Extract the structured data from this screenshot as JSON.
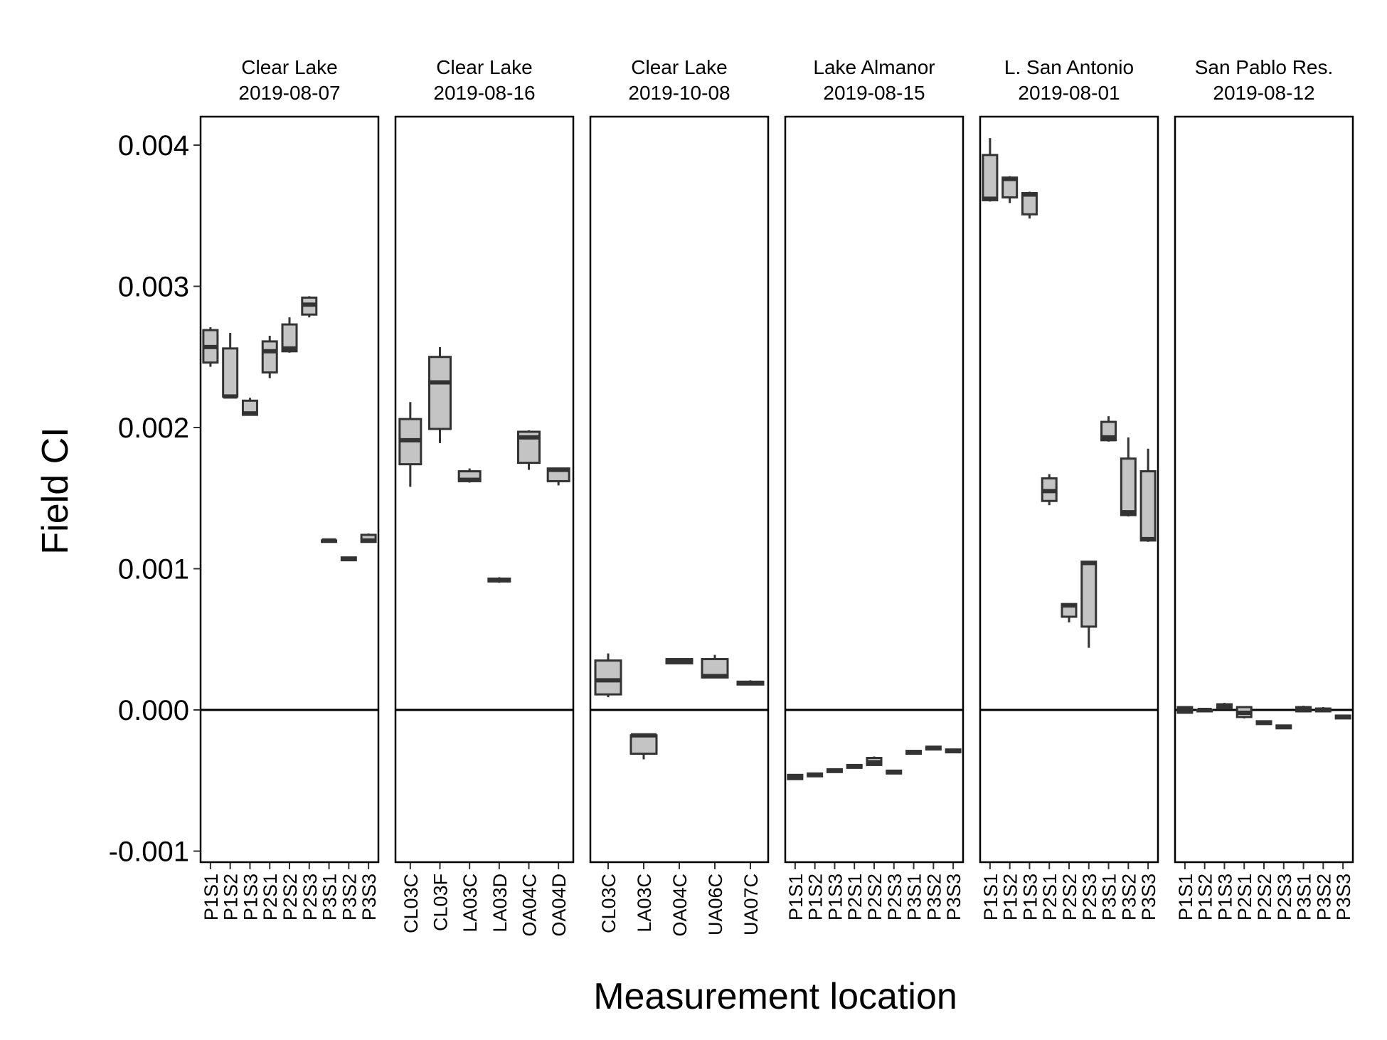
{
  "chart_data": {
    "type": "boxplot",
    "title": "",
    "xlabel": "Measurement location",
    "ylabel": "Field CI",
    "ylim": [
      -0.0011,
      0.0042
    ],
    "yticks": [
      -0.001,
      0.0,
      0.001,
      0.002,
      0.003,
      0.004
    ],
    "ytick_labels": [
      "-0.001",
      "0.000",
      "0.001",
      "0.002",
      "0.003",
      "0.004"
    ],
    "reference_line": 0,
    "grid": false,
    "box_color": "#c4c4c4",
    "line_color": "#333333",
    "panels": [
      {
        "title_line1": "Clear Lake",
        "title_line2": "2019-08-07",
        "boxes": [
          {
            "label": "P1S1",
            "min": 0.00243,
            "q1": 0.00246,
            "median": 0.00257,
            "q3": 0.00269,
            "max": 0.00271
          },
          {
            "label": "P1S2",
            "min": 0.00221,
            "q1": 0.00222,
            "median": 0.00222,
            "q3": 0.00256,
            "max": 0.00267
          },
          {
            "label": "P1S3",
            "min": 0.00209,
            "q1": 0.00209,
            "median": 0.0021,
            "q3": 0.00219,
            "max": 0.00221
          },
          {
            "label": "P2S1",
            "min": 0.00235,
            "q1": 0.00239,
            "median": 0.00254,
            "q3": 0.00261,
            "max": 0.00265
          },
          {
            "label": "P2S2",
            "min": 0.00253,
            "q1": 0.00254,
            "median": 0.00256,
            "q3": 0.00273,
            "max": 0.00278
          },
          {
            "label": "P2S3",
            "min": 0.00278,
            "q1": 0.0028,
            "median": 0.00287,
            "q3": 0.00292,
            "max": 0.00293
          },
          {
            "label": "P3S1",
            "min": 0.00119,
            "q1": 0.00119,
            "median": 0.0012,
            "q3": 0.0012,
            "max": 0.00121
          },
          {
            "label": "P3S2",
            "min": 0.00106,
            "q1": 0.00106,
            "median": 0.00107,
            "q3": 0.00108,
            "max": 0.00108
          },
          {
            "label": "P3S3",
            "min": 0.00119,
            "q1": 0.00119,
            "median": 0.0012,
            "q3": 0.00124,
            "max": 0.00125
          }
        ]
      },
      {
        "title_line1": "Clear Lake",
        "title_line2": "2019-08-16",
        "boxes": [
          {
            "label": "CL03C",
            "min": 0.00158,
            "q1": 0.00174,
            "median": 0.00191,
            "q3": 0.00206,
            "max": 0.00218
          },
          {
            "label": "CL03F",
            "min": 0.00189,
            "q1": 0.00199,
            "median": 0.00232,
            "q3": 0.0025,
            "max": 0.00257
          },
          {
            "label": "LA03C",
            "min": 0.00161,
            "q1": 0.00162,
            "median": 0.00163,
            "q3": 0.00169,
            "max": 0.00171
          },
          {
            "label": "LA03D",
            "min": 0.0009,
            "q1": 0.00091,
            "median": 0.00092,
            "q3": 0.00093,
            "max": 0.00094
          },
          {
            "label": "OA04C",
            "min": 0.0017,
            "q1": 0.00175,
            "median": 0.00193,
            "q3": 0.00197,
            "max": 0.00198
          },
          {
            "label": "OA04D",
            "min": 0.00159,
            "q1": 0.00162,
            "median": 0.0017,
            "q3": 0.00171,
            "max": 0.00171
          }
        ]
      },
      {
        "title_line1": "Clear Lake",
        "title_line2": "2019-10-08",
        "boxes": [
          {
            "label": "CL03C",
            "min": 9e-05,
            "q1": 0.00011,
            "median": 0.00021,
            "q3": 0.00035,
            "max": 0.0004
          },
          {
            "label": "LA03C",
            "min": -0.00035,
            "q1": -0.00031,
            "median": -0.00018,
            "q3": -0.00018,
            "max": -0.00018
          },
          {
            "label": "OA04C",
            "min": 0.00033,
            "q1": 0.00033,
            "median": 0.00035,
            "q3": 0.00036,
            "max": 0.00036
          },
          {
            "label": "UA06C",
            "min": 0.00023,
            "q1": 0.00023,
            "median": 0.00024,
            "q3": 0.00036,
            "max": 0.00039
          },
          {
            "label": "UA07C",
            "min": 0.00018,
            "q1": 0.00018,
            "median": 0.00019,
            "q3": 0.0002,
            "max": 0.00021
          }
        ]
      },
      {
        "title_line1": "Lake Almanor",
        "title_line2": "2019-08-15",
        "boxes": [
          {
            "label": "P1S1",
            "min": -0.00049,
            "q1": -0.00049,
            "median": -0.00048,
            "q3": -0.00046,
            "max": -0.00046
          },
          {
            "label": "P1S2",
            "min": -0.00047,
            "q1": -0.00047,
            "median": -0.00046,
            "q3": -0.00045,
            "max": -0.00045
          },
          {
            "label": "P1S3",
            "min": -0.00044,
            "q1": -0.00044,
            "median": -0.00043,
            "q3": -0.00042,
            "max": -0.00042
          },
          {
            "label": "P2S1",
            "min": -0.00041,
            "q1": -0.00041,
            "median": -0.0004,
            "q3": -0.00039,
            "max": -0.00039
          },
          {
            "label": "P2S2",
            "min": -0.00039,
            "q1": -0.00039,
            "median": -0.00037,
            "q3": -0.00034,
            "max": -0.00033
          },
          {
            "label": "P2S3",
            "min": -0.00045,
            "q1": -0.00045,
            "median": -0.00044,
            "q3": -0.00043,
            "max": -0.00043
          },
          {
            "label": "P3S1",
            "min": -0.00031,
            "q1": -0.00031,
            "median": -0.0003,
            "q3": -0.00029,
            "max": -0.00029
          },
          {
            "label": "P3S2",
            "min": -0.00028,
            "q1": -0.00028,
            "median": -0.00027,
            "q3": -0.00026,
            "max": -0.00026
          },
          {
            "label": "P3S3",
            "min": -0.0003,
            "q1": -0.0003,
            "median": -0.00029,
            "q3": -0.00028,
            "max": -0.00028
          }
        ]
      },
      {
        "title_line1": "L. San Antonio",
        "title_line2": "2019-08-01",
        "boxes": [
          {
            "label": "P1S1",
            "min": 0.0036,
            "q1": 0.00361,
            "median": 0.00362,
            "q3": 0.00393,
            "max": 0.00405
          },
          {
            "label": "P1S2",
            "min": 0.00359,
            "q1": 0.00363,
            "median": 0.00376,
            "q3": 0.00377,
            "max": 0.00378
          },
          {
            "label": "P1S3",
            "min": 0.00348,
            "q1": 0.00351,
            "median": 0.00365,
            "q3": 0.00366,
            "max": 0.00367
          },
          {
            "label": "P2S1",
            "min": 0.00145,
            "q1": 0.00148,
            "median": 0.00155,
            "q3": 0.00164,
            "max": 0.00167
          },
          {
            "label": "P2S2",
            "min": 0.00062,
            "q1": 0.00066,
            "median": 0.00074,
            "q3": 0.00075,
            "max": 0.00075
          },
          {
            "label": "P2S3",
            "min": 0.00044,
            "q1": 0.00059,
            "median": 0.00104,
            "q3": 0.00105,
            "max": 0.00105
          },
          {
            "label": "P3S1",
            "min": 0.0019,
            "q1": 0.00191,
            "median": 0.00193,
            "q3": 0.00204,
            "max": 0.00208
          },
          {
            "label": "P3S2",
            "min": 0.00137,
            "q1": 0.00138,
            "median": 0.0014,
            "q3": 0.00178,
            "max": 0.00193
          },
          {
            "label": "P3S3",
            "min": 0.00119,
            "q1": 0.0012,
            "median": 0.00121,
            "q3": 0.00169,
            "max": 0.00185
          }
        ]
      },
      {
        "title_line1": "San Pablo Res.",
        "title_line2": "2019-08-12",
        "boxes": [
          {
            "label": "P1S1",
            "min": -2e-05,
            "q1": -2e-05,
            "median": 0.0,
            "q3": 2e-05,
            "max": 2e-05
          },
          {
            "label": "P1S2",
            "min": -1e-05,
            "q1": -1e-05,
            "median": 0.0,
            "q3": 0.0,
            "max": 0.0
          },
          {
            "label": "P1S3",
            "min": 1e-05,
            "q1": 1e-05,
            "median": 3e-05,
            "q3": 4e-05,
            "max": 5e-05
          },
          {
            "label": "P2S1",
            "min": -6e-05,
            "q1": -5e-05,
            "median": -2e-05,
            "q3": 2e-05,
            "max": 2e-05
          },
          {
            "label": "P2S2",
            "min": -0.0001,
            "q1": -0.0001,
            "median": -9e-05,
            "q3": -8e-05,
            "max": -8e-05
          },
          {
            "label": "P2S3",
            "min": -0.00013,
            "q1": -0.00013,
            "median": -0.00012,
            "q3": -0.00011,
            "max": -0.00011
          },
          {
            "label": "P3S1",
            "min": -1e-05,
            "q1": -1e-05,
            "median": 0.0,
            "q3": 2e-05,
            "max": 3e-05
          },
          {
            "label": "P3S2",
            "min": -1e-05,
            "q1": -1e-05,
            "median": 0.0,
            "q3": 1e-05,
            "max": 2e-05
          },
          {
            "label": "P3S3",
            "min": -6e-05,
            "q1": -6e-05,
            "median": -5e-05,
            "q3": -4e-05,
            "max": -4e-05
          }
        ]
      }
    ]
  }
}
